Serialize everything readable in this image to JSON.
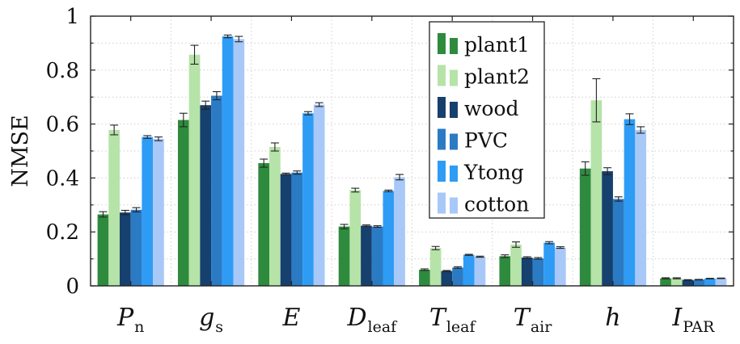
{
  "chart_data": {
    "type": "bar",
    "title": "",
    "xlabel": "",
    "ylabel": "NMSE",
    "ylim": [
      0,
      1
    ],
    "yticks": [
      0,
      0.2,
      0.4,
      0.6,
      0.8,
      1
    ],
    "ytick_labels": [
      "0",
      "0.2",
      "0.4",
      "0.6",
      "0.8",
      "1"
    ],
    "grid": true,
    "legend_position": "top-right-inside",
    "categories": [
      {
        "main": "P",
        "sub": "n",
        "sub_italic": true
      },
      {
        "main": "g",
        "sub": "s",
        "sub_italic": true
      },
      {
        "main": "E",
        "sub": "",
        "sub_italic": false
      },
      {
        "main": "D",
        "sub": "leaf",
        "sub_italic": false
      },
      {
        "main": "T",
        "sub": "leaf",
        "sub_italic": false
      },
      {
        "main": "T",
        "sub": "air",
        "sub_italic": false
      },
      {
        "main": "h",
        "sub": "",
        "sub_italic": false
      },
      {
        "main": "I",
        "sub": "PAR",
        "sub_italic": false
      }
    ],
    "series": [
      {
        "name": "plant1",
        "color": "#2e8b3e",
        "values": [
          0.265,
          0.615,
          0.455,
          0.22,
          0.06,
          0.11,
          0.435,
          0.028
        ],
        "errors": [
          0.01,
          0.025,
          0.015,
          0.008,
          0.003,
          0.005,
          0.025,
          0.002
        ]
      },
      {
        "name": "plant2",
        "color": "#b6e3a8",
        "values": [
          0.578,
          0.857,
          0.515,
          0.355,
          0.14,
          0.153,
          0.688,
          0.028
        ],
        "errors": [
          0.018,
          0.035,
          0.015,
          0.007,
          0.006,
          0.01,
          0.08,
          0.002
        ]
      },
      {
        "name": "wood",
        "color": "#16406e",
        "values": [
          0.272,
          0.67,
          0.415,
          0.223,
          0.055,
          0.105,
          0.425,
          0.022
        ],
        "errors": [
          0.008,
          0.015,
          0.003,
          0.003,
          0.002,
          0.003,
          0.013,
          0.001
        ]
      },
      {
        "name": "PVC",
        "color": "#2b7bc4",
        "values": [
          0.282,
          0.705,
          0.42,
          0.22,
          0.068,
          0.102,
          0.322,
          0.023
        ],
        "errors": [
          0.008,
          0.015,
          0.006,
          0.003,
          0.003,
          0.003,
          0.008,
          0.001
        ]
      },
      {
        "name": "Ytong",
        "color": "#2e9cf5",
        "values": [
          0.552,
          0.925,
          0.64,
          0.352,
          0.115,
          0.16,
          0.618,
          0.027
        ],
        "errors": [
          0.005,
          0.005,
          0.006,
          0.003,
          0.002,
          0.004,
          0.02,
          0.001
        ]
      },
      {
        "name": "cotton",
        "color": "#a8c8f8",
        "values": [
          0.545,
          0.915,
          0.672,
          0.403,
          0.108,
          0.142,
          0.578,
          0.028
        ],
        "errors": [
          0.007,
          0.01,
          0.007,
          0.01,
          0.002,
          0.003,
          0.012,
          0.001
        ]
      }
    ]
  }
}
